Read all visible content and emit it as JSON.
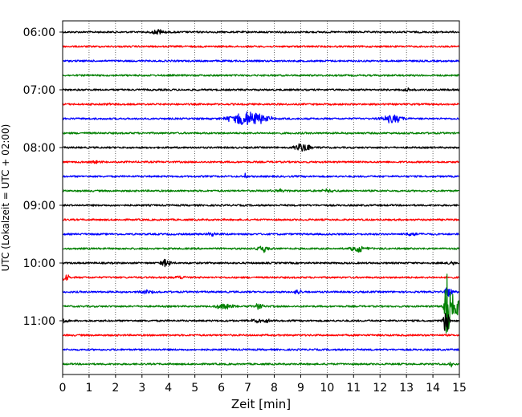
{
  "chart_data": {
    "type": "line",
    "title": "",
    "xlabel": "Zeit  [min]",
    "ylabel": "UTC (Lokalzeit = UTC + 02:00)",
    "xlim": [
      0,
      15
    ],
    "x_ticks": [
      "0",
      "1",
      "2",
      "3",
      "4",
      "5",
      "6",
      "7",
      "8",
      "9",
      "10",
      "11",
      "12",
      "13",
      "14",
      "15"
    ],
    "y_tick_labels": [
      "06:00",
      "07:00",
      "08:00",
      "09:00",
      "10:00",
      "11:00"
    ],
    "grid": "vertical dotted",
    "color_cycle": [
      "#000000",
      "#ff0000",
      "#0000ff",
      "#008000"
    ],
    "traces": [
      {
        "start": "06:00",
        "color": "#000000",
        "events": [
          {
            "t": 3.6,
            "amp": 0.35,
            "dur": 0.5
          }
        ]
      },
      {
        "start": "06:15",
        "color": "#ff0000",
        "events": []
      },
      {
        "start": "06:30",
        "color": "#0000ff",
        "events": []
      },
      {
        "start": "06:45",
        "color": "#008000",
        "events": []
      },
      {
        "start": "07:00",
        "color": "#000000",
        "events": [
          {
            "t": 13.0,
            "amp": 0.2,
            "dur": 0.4
          }
        ]
      },
      {
        "start": "07:15",
        "color": "#ff0000",
        "events": [
          {
            "t": 1.8,
            "amp": 0.15,
            "dur": 0.4
          }
        ]
      },
      {
        "start": "07:30",
        "color": "#0000ff",
        "events": [
          {
            "t": 7.0,
            "amp": 1.0,
            "dur": 1.4
          },
          {
            "t": 12.5,
            "amp": 0.6,
            "dur": 0.8
          }
        ]
      },
      {
        "start": "07:45",
        "color": "#008000",
        "events": []
      },
      {
        "start": "08:00",
        "color": "#000000",
        "events": [
          {
            "t": 9.1,
            "amp": 0.6,
            "dur": 0.6
          }
        ]
      },
      {
        "start": "08:15",
        "color": "#ff0000",
        "events": [
          {
            "t": 1.2,
            "amp": 0.15,
            "dur": 0.6
          }
        ]
      },
      {
        "start": "08:30",
        "color": "#0000ff",
        "events": [
          {
            "t": 6.9,
            "amp": 0.4,
            "dur": 0.1
          }
        ]
      },
      {
        "start": "08:45",
        "color": "#008000",
        "events": [
          {
            "t": 8.2,
            "amp": 0.2,
            "dur": 0.6
          },
          {
            "t": 10.0,
            "amp": 0.2,
            "dur": 0.6
          }
        ]
      },
      {
        "start": "09:00",
        "color": "#000000",
        "events": []
      },
      {
        "start": "09:15",
        "color": "#ff0000",
        "events": []
      },
      {
        "start": "09:30",
        "color": "#0000ff",
        "events": [
          {
            "t": 5.6,
            "amp": 0.3,
            "dur": 0.5
          },
          {
            "t": 13.2,
            "amp": 0.3,
            "dur": 0.5
          }
        ]
      },
      {
        "start": "09:45",
        "color": "#008000",
        "events": [
          {
            "t": 7.6,
            "amp": 0.5,
            "dur": 0.6
          },
          {
            "t": 11.2,
            "amp": 0.5,
            "dur": 0.6
          }
        ]
      },
      {
        "start": "10:00",
        "color": "#000000",
        "events": [
          {
            "t": 3.9,
            "amp": 0.55,
            "dur": 0.4
          },
          {
            "t": 14.7,
            "amp": 0.4,
            "dur": 0.2
          }
        ]
      },
      {
        "start": "10:15",
        "color": "#ff0000",
        "events": [
          {
            "t": 0.1,
            "amp": 0.7,
            "dur": 0.25
          },
          {
            "t": 4.5,
            "amp": 0.2,
            "dur": 0.5
          }
        ]
      },
      {
        "start": "10:30",
        "color": "#0000ff",
        "events": [
          {
            "t": 3.2,
            "amp": 0.3,
            "dur": 0.4
          },
          {
            "t": 8.9,
            "amp": 0.35,
            "dur": 0.3
          },
          {
            "t": 14.6,
            "amp": 0.9,
            "dur": 0.3
          }
        ]
      },
      {
        "start": "10:45",
        "color": "#008000",
        "events": [
          {
            "t": 6.1,
            "amp": 0.35,
            "dur": 0.8
          },
          {
            "t": 7.4,
            "amp": 0.35,
            "dur": 0.4
          },
          {
            "t": 14.55,
            "amp": 5.5,
            "dur": 0.2
          },
          {
            "t": 14.8,
            "amp": 2.0,
            "dur": 0.4
          }
        ]
      },
      {
        "start": "11:00",
        "color": "#000000",
        "events": [
          {
            "t": 0.1,
            "amp": 0.3,
            "dur": 0.2
          },
          {
            "t": 7.5,
            "amp": 0.3,
            "dur": 0.7
          },
          {
            "t": 14.5,
            "amp": 1.8,
            "dur": 0.2
          }
        ]
      },
      {
        "start": "11:15",
        "color": "#ff0000",
        "events": []
      },
      {
        "start": "11:30",
        "color": "#0000ff",
        "events": []
      },
      {
        "start": "11:45",
        "color": "#008000",
        "events": [
          {
            "t": 14.7,
            "amp": 0.4,
            "dur": 0.2
          }
        ]
      }
    ]
  }
}
